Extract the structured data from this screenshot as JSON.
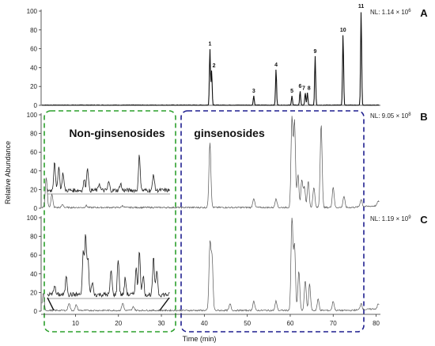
{
  "chart_data": {
    "type": "line",
    "xlabel": "Time (min)",
    "ylabel": "Relative Abundance",
    "xlim": [
      2,
      81
    ],
    "ylim": [
      0,
      100
    ],
    "x_ticks": [
      10,
      20,
      30,
      40,
      50,
      60,
      70,
      80
    ],
    "y_ticks": [
      0,
      20,
      40,
      60,
      80,
      100
    ],
    "region_labels": {
      "left": "Non-ginsenosides",
      "right": "ginsenosides"
    },
    "region_colors": {
      "left": "#2ca02c",
      "right": "#1f1f8f"
    },
    "panels": [
      {
        "letter": "A",
        "nl": "NL: 1.14 × 10",
        "nl_exp": "6",
        "peaks": [
          {
            "label": "1",
            "x": 41.3,
            "y": 60
          },
          {
            "label": "2",
            "x": 41.7,
            "y": 37
          },
          {
            "label": "3",
            "x": 51.5,
            "y": 10
          },
          {
            "label": "4",
            "x": 56.7,
            "y": 38
          },
          {
            "label": "5",
            "x": 60.4,
            "y": 10
          },
          {
            "label": "6",
            "x": 62.3,
            "y": 15
          },
          {
            "label": "7",
            "x": 63.5,
            "y": 13
          },
          {
            "label": "8",
            "x": 64.0,
            "y": 13
          },
          {
            "label": "9",
            "x": 65.8,
            "y": 52
          },
          {
            "label": "10",
            "x": 72.3,
            "y": 75
          },
          {
            "label": "11",
            "x": 76.5,
            "y": 100
          }
        ]
      },
      {
        "letter": "B",
        "nl": "NL: 9.05 × 10",
        "nl_exp": "8",
        "peaks": [
          {
            "x": 3.2,
            "y": 32
          },
          {
            "x": 4.5,
            "y": 14
          },
          {
            "x": 7.0,
            "y": 3
          },
          {
            "x": 12.5,
            "y": 2
          },
          {
            "x": 21.0,
            "y": 2
          },
          {
            "x": 41.3,
            "y": 70
          },
          {
            "x": 51.5,
            "y": 10
          },
          {
            "x": 56.7,
            "y": 10
          },
          {
            "x": 60.4,
            "y": 95
          },
          {
            "x": 61.0,
            "y": 92
          },
          {
            "x": 61.8,
            "y": 35
          },
          {
            "x": 62.7,
            "y": 30
          },
          {
            "x": 63.3,
            "y": 22
          },
          {
            "x": 64.2,
            "y": 28
          },
          {
            "x": 65.5,
            "y": 22
          },
          {
            "x": 67.2,
            "y": 90
          },
          {
            "x": 70.0,
            "y": 22
          },
          {
            "x": 72.5,
            "y": 12
          },
          {
            "x": 76.5,
            "y": 8
          },
          {
            "x": 80.5,
            "y": 5
          }
        ],
        "inset_peaks": [
          {
            "x": 3.5,
            "y": 50
          },
          {
            "x": 4.4,
            "y": 42
          },
          {
            "x": 5.3,
            "y": 30
          },
          {
            "x": 9.8,
            "y": 18
          },
          {
            "x": 10.5,
            "y": 40
          },
          {
            "x": 13.0,
            "y": 12
          },
          {
            "x": 15.0,
            "y": 14
          },
          {
            "x": 17.5,
            "y": 12
          },
          {
            "x": 21.5,
            "y": 60
          },
          {
            "x": 24.5,
            "y": 28
          }
        ]
      },
      {
        "letter": "C",
        "nl": "NL: 1.19 × 10",
        "nl_exp": "9",
        "peaks": [
          {
            "x": 2.5,
            "y": 18
          },
          {
            "x": 8.5,
            "y": 8
          },
          {
            "x": 10.2,
            "y": 6
          },
          {
            "x": 21.0,
            "y": 8
          },
          {
            "x": 23.5,
            "y": 4
          },
          {
            "x": 41.3,
            "y": 70
          },
          {
            "x": 41.8,
            "y": 55
          },
          {
            "x": 46.0,
            "y": 7
          },
          {
            "x": 51.5,
            "y": 10
          },
          {
            "x": 56.7,
            "y": 10
          },
          {
            "x": 60.4,
            "y": 100
          },
          {
            "x": 61.0,
            "y": 70
          },
          {
            "x": 62.0,
            "y": 42
          },
          {
            "x": 63.5,
            "y": 32
          },
          {
            "x": 64.5,
            "y": 28
          },
          {
            "x": 66.5,
            "y": 12
          },
          {
            "x": 70.0,
            "y": 10
          },
          {
            "x": 76.5,
            "y": 7
          },
          {
            "x": 80.5,
            "y": 5
          }
        ],
        "inset_peaks": [
          {
            "x": 3.5,
            "y": 15
          },
          {
            "x": 6.0,
            "y": 30
          },
          {
            "x": 9.6,
            "y": 65
          },
          {
            "x": 10.1,
            "y": 90
          },
          {
            "x": 10.6,
            "y": 55
          },
          {
            "x": 11.5,
            "y": 20
          },
          {
            "x": 15.5,
            "y": 38
          },
          {
            "x": 17.0,
            "y": 55
          },
          {
            "x": 18.5,
            "y": 25
          },
          {
            "x": 20.8,
            "y": 40
          },
          {
            "x": 21.5,
            "y": 70
          },
          {
            "x": 22.3,
            "y": 30
          },
          {
            "x": 24.5,
            "y": 55
          },
          {
            "x": 25.2,
            "y": 38
          }
        ]
      }
    ]
  }
}
